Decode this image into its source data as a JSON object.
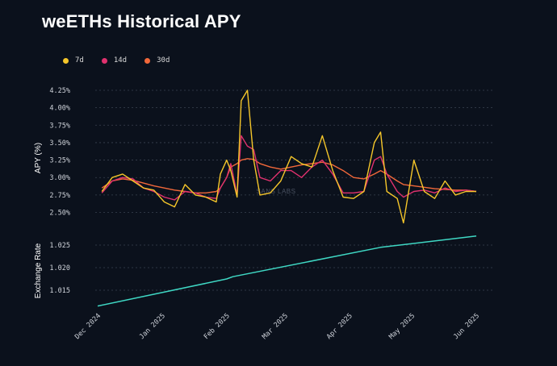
{
  "title": "weETHs Historical APY",
  "watermark": "SANS LABS",
  "legend": [
    {
      "label": "7d",
      "color": "#f5c62a"
    },
    {
      "label": "14d",
      "color": "#e0316e"
    },
    {
      "label": "30d",
      "color": "#f2683a"
    }
  ],
  "chart_data": [
    {
      "type": "line",
      "ylabel": "APY (%)",
      "ylim": [
        2.5,
        4.25
      ],
      "yticks": [
        "2.50%",
        "2.75%",
        "3.00%",
        "3.25%",
        "3.50%",
        "3.75%",
        "4.00%",
        "4.25%"
      ],
      "ytick_values": [
        2.5,
        2.75,
        3.0,
        3.25,
        3.5,
        3.75,
        4.0,
        4.25
      ],
      "x": [
        "2024-12-03",
        "2024-12-08",
        "2024-12-13",
        "2024-12-18",
        "2024-12-23",
        "2024-12-28",
        "2025-01-02",
        "2025-01-07",
        "2025-01-12",
        "2025-01-17",
        "2025-01-22",
        "2025-01-27",
        "2025-01-29",
        "2025-02-01",
        "2025-02-03",
        "2025-02-06",
        "2025-02-08",
        "2025-02-11",
        "2025-02-14",
        "2025-02-17",
        "2025-02-22",
        "2025-02-27",
        "2025-03-04",
        "2025-03-09",
        "2025-03-14",
        "2025-03-19",
        "2025-03-24",
        "2025-03-29",
        "2025-04-03",
        "2025-04-08",
        "2025-04-13",
        "2025-04-16",
        "2025-04-19",
        "2025-04-24",
        "2025-04-27",
        "2025-05-02",
        "2025-05-07",
        "2025-05-12",
        "2025-05-17",
        "2025-05-22",
        "2025-05-27",
        "2025-06-01"
      ],
      "series": [
        {
          "name": "7d",
          "color": "#f5c62a",
          "values": [
            2.8,
            3.0,
            3.05,
            2.95,
            2.85,
            2.82,
            2.65,
            2.58,
            2.9,
            2.75,
            2.72,
            2.65,
            3.05,
            3.25,
            3.1,
            2.72,
            4.1,
            4.25,
            3.25,
            2.75,
            2.78,
            2.95,
            3.3,
            3.2,
            3.15,
            3.6,
            3.1,
            2.72,
            2.7,
            2.8,
            3.5,
            3.65,
            2.8,
            2.7,
            2.35,
            3.25,
            2.8,
            2.7,
            2.95,
            2.75,
            2.8,
            2.8
          ]
        },
        {
          "name": "14d",
          "color": "#e0316e",
          "values": [
            2.78,
            2.95,
            3.0,
            2.98,
            2.85,
            2.8,
            2.72,
            2.68,
            2.8,
            2.78,
            2.72,
            2.7,
            2.85,
            3.0,
            3.2,
            2.75,
            3.6,
            3.45,
            3.4,
            3.0,
            2.95,
            3.1,
            3.1,
            3.0,
            3.15,
            3.25,
            3.05,
            2.78,
            2.78,
            2.8,
            3.25,
            3.3,
            3.05,
            2.8,
            2.72,
            2.8,
            2.82,
            2.78,
            2.85,
            2.8,
            2.82,
            2.8
          ]
        },
        {
          "name": "30d",
          "color": "#f2683a",
          "values": [
            2.85,
            2.95,
            2.98,
            2.96,
            2.92,
            2.88,
            2.85,
            2.82,
            2.8,
            2.78,
            2.78,
            2.8,
            2.85,
            3.0,
            3.15,
            3.2,
            3.25,
            3.27,
            3.26,
            3.2,
            3.15,
            3.12,
            3.15,
            3.18,
            3.2,
            3.22,
            3.18,
            3.1,
            3.0,
            2.98,
            3.05,
            3.1,
            3.05,
            2.95,
            2.9,
            2.88,
            2.86,
            2.84,
            2.83,
            2.82,
            2.82,
            2.8
          ]
        }
      ]
    },
    {
      "type": "line",
      "ylabel": "Exchange Rate",
      "ylim": [
        1.0105,
        1.028
      ],
      "yticks": [
        "1.015",
        "1.020",
        "1.025"
      ],
      "ytick_values": [
        1.015,
        1.02,
        1.025
      ],
      "x": [
        "2024-12-01",
        "2025-02-01",
        "2025-02-04",
        "2025-04-16",
        "2025-06-01"
      ],
      "series": [
        {
          "name": "Exchange Rate",
          "color": "#3fd8c4",
          "values": [
            1.0115,
            1.0175,
            1.018,
            1.0245,
            1.027
          ]
        }
      ],
      "xticks": [
        "Dec 2024",
        "Jan 2025",
        "Feb 2025",
        "Mar 2025",
        "Apr 2025",
        "May 2025",
        "Jun 2025"
      ],
      "xtick_dates": [
        "2024-12-01",
        "2025-01-01",
        "2025-02-01",
        "2025-03-01",
        "2025-04-01",
        "2025-05-01",
        "2025-06-01"
      ]
    }
  ]
}
